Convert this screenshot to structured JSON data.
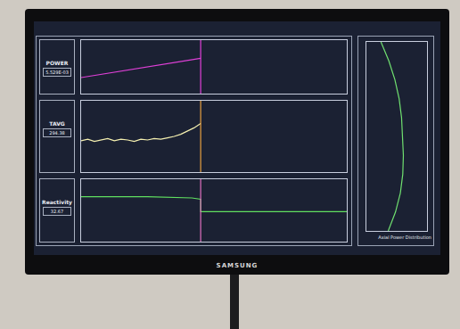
{
  "chart_data": [
    {
      "type": "line",
      "title": "POWER",
      "readout": "5.529E-03",
      "xlim": [
        0,
        240
      ],
      "ylim": [
        0,
        1
      ],
      "tick_labels": false,
      "series": [
        {
          "color": "#e040d8",
          "x": [
            0,
            12,
            24,
            36,
            48,
            60,
            72,
            84,
            96,
            108
          ],
          "values": [
            0.3,
            0.34,
            0.38,
            0.42,
            0.46,
            0.5,
            0.54,
            0.58,
            0.62,
            0.66
          ]
        },
        {
          "color": "#e040d8",
          "x": [
            108,
            108
          ],
          "values": [
            0,
            1
          ]
        }
      ]
    },
    {
      "type": "line",
      "title": "TAVG",
      "readout": "294.38",
      "xlim": [
        0,
        240
      ],
      "ylim": [
        0,
        1
      ],
      "tick_labels": false,
      "series": [
        {
          "color": "#f5f0b0",
          "x": [
            0,
            6,
            12,
            18,
            24,
            30,
            36,
            42,
            48,
            54,
            60,
            66,
            72,
            78,
            84,
            90,
            96,
            102,
            108
          ],
          "values": [
            0.44,
            0.46,
            0.43,
            0.45,
            0.47,
            0.44,
            0.46,
            0.45,
            0.43,
            0.46,
            0.45,
            0.47,
            0.46,
            0.48,
            0.5,
            0.53,
            0.57,
            0.62,
            0.68
          ]
        },
        {
          "color": "#e8a040",
          "x": [
            108,
            108
          ],
          "values": [
            0,
            1
          ]
        }
      ]
    },
    {
      "type": "line",
      "title": "Reactivity",
      "readout": "32.67",
      "xlim": [
        0,
        240
      ],
      "ylim": [
        0,
        1
      ],
      "tick_labels": false,
      "series": [
        {
          "color": "#60e060",
          "x": [
            0,
            60,
            100,
            108,
            108,
            240
          ],
          "values": [
            0.72,
            0.72,
            0.7,
            0.68,
            0.48,
            0.48
          ]
        },
        {
          "color": "#e070c0",
          "x": [
            108,
            108
          ],
          "values": [
            0,
            1
          ]
        }
      ]
    },
    {
      "type": "line",
      "title": "Axial Power Distribution",
      "xlim": [
        0,
        1
      ],
      "ylim": [
        0,
        1
      ],
      "tick_labels": false,
      "series": [
        {
          "color": "#70e070",
          "x": [
            0.36,
            0.48,
            0.56,
            0.6,
            0.61,
            0.6,
            0.58,
            0.54,
            0.47,
            0.37,
            0.24
          ],
          "values": [
            0,
            0.1,
            0.2,
            0.3,
            0.4,
            0.5,
            0.6,
            0.7,
            0.8,
            0.9,
            1.0
          ]
        }
      ]
    }
  ],
  "monitor": {
    "brand": "SAMSUNG"
  }
}
